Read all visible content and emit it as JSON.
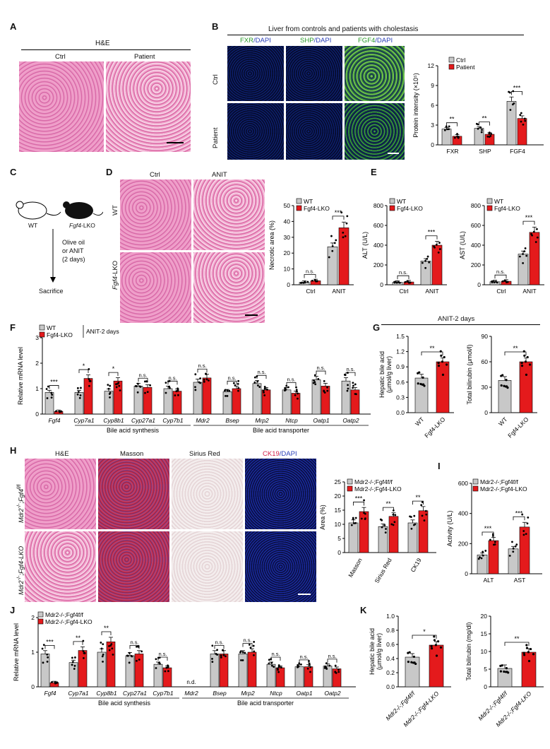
{
  "panels": {
    "A": {
      "letter": "A",
      "title": "H&E",
      "ctrl": "Ctrl",
      "patient": "Patient"
    },
    "B": {
      "letter": "B",
      "title": "Liver from controls and patients with cholestasis",
      "col1a": "FXR",
      "col1b": "/DAPI",
      "col2a": "SHP",
      "col2b": "/DAPI",
      "col3a": "FGF4",
      "col3b": "/DAPI",
      "row1": "Ctrl",
      "row2": "Patient"
    },
    "C": {
      "letter": "C",
      "wt": "WT",
      "lko": "Fgf4",
      "lko_suffix": "-LKO",
      "treat1": "Olive oil",
      "treat2": "or ANIT",
      "treat3": "(2 days)",
      "end": "Sacrifice"
    },
    "D": {
      "letter": "D",
      "ctrl": "Ctrl",
      "anit": "ANIT",
      "row1": "WT",
      "row2": "Fgf4",
      "row2_suffix": "-LKO"
    },
    "E": {
      "letter": "E"
    },
    "F": {
      "letter": "F"
    },
    "G": {
      "letter": "G",
      "title": "ANIT-2 days"
    },
    "H": {
      "letter": "H",
      "c1": "H&E",
      "c2": "Masson",
      "c3": "Sirius Red",
      "c4a": "CK19",
      "c4b": "/DAPI",
      "row1a": "Mdr2",
      "row1b": "-/-",
      "row1c": ";Fgf4",
      "row1d": "f/f",
      "row2a": "Mdr2",
      "row2b": "-/-",
      "row2c": ";Fgf4-LKO"
    },
    "I": {
      "letter": "I"
    },
    "J": {
      "letter": "J"
    },
    "K": {
      "letter": "K"
    }
  },
  "colors": {
    "ctrl": "#c8c8c8",
    "treat": "#e41a1c",
    "grid": "#000000"
  },
  "chart_data": [
    {
      "id": "B",
      "type": "bar",
      "ylabel": "Protein intensity (×10⁵)",
      "ylim": [
        0,
        12
      ],
      "yticks": [
        0,
        3,
        6,
        9,
        12
      ],
      "categories": [
        "FXR",
        "SHP",
        "FGF4"
      ],
      "series": [
        {
          "name": "Ctrl",
          "values": [
            2.4,
            2.5,
            6.6
          ]
        },
        {
          "name": "Patient",
          "values": [
            1.3,
            1.6,
            4.0
          ]
        }
      ],
      "sig": [
        "**",
        "**",
        "***"
      ],
      "legend": [
        "Ctrl",
        "Patient"
      ]
    },
    {
      "id": "D",
      "type": "bar",
      "ylabel": "Necrotic area (%)",
      "ylim": [
        0,
        50
      ],
      "yticks": [
        0,
        10,
        20,
        30,
        40,
        50
      ],
      "categories": [
        "Ctrl",
        "ANIT"
      ],
      "series": [
        {
          "name": "WT",
          "values": [
            1.5,
            24
          ]
        },
        {
          "name": "Fgf4-LKO",
          "values": [
            2.5,
            36
          ]
        }
      ],
      "sig": [
        "n.s.",
        "***"
      ],
      "legend": [
        "WT",
        "Fgf4-LKO"
      ]
    },
    {
      "id": "E1",
      "type": "bar",
      "ylabel": "ALT (U/L)",
      "ylim": [
        0,
        800
      ],
      "yticks": [
        0,
        200,
        400,
        600,
        800
      ],
      "categories": [
        "Ctrl",
        "ANIT"
      ],
      "series": [
        {
          "name": "WT",
          "values": [
            25,
            240
          ]
        },
        {
          "name": "Fgf4-LKO",
          "values": [
            28,
            400
          ]
        }
      ],
      "sig": [
        "n.s.",
        "***"
      ],
      "legend": [
        "WT",
        "Fgf4-LKO"
      ]
    },
    {
      "id": "E2",
      "type": "bar",
      "ylabel": "AST (U/L)",
      "ylim": [
        0,
        800
      ],
      "yticks": [
        0,
        200,
        400,
        600,
        800
      ],
      "categories": [
        "Ctrl",
        "ANIT"
      ],
      "series": [
        {
          "name": "WT",
          "values": [
            30,
            310
          ]
        },
        {
          "name": "Fgf4-LKO",
          "values": [
            35,
            530
          ]
        }
      ],
      "sig": [
        "n.s.",
        "***"
      ],
      "legend": [
        "WT",
        "Fgf4-LKO"
      ]
    },
    {
      "id": "F",
      "type": "bar",
      "ylabel": "Relative mRNA level",
      "ylim": [
        0,
        3
      ],
      "yticks": [
        0,
        1,
        2,
        3
      ],
      "categories": [
        "Fgf4",
        "Cyp7a1",
        "Cyp8b1",
        "Cyp27a1",
        "Cyp7b1",
        "Mdr2",
        "Bsep",
        "Mrp2",
        "Ntcp",
        "Oatp1",
        "Oatp2"
      ],
      "series": [
        {
          "name": "WT",
          "values": [
            0.85,
            0.85,
            0.9,
            1.1,
            1.0,
            1.25,
            0.88,
            1.2,
            0.95,
            1.35,
            1.3
          ]
        },
        {
          "name": "Fgf4-LKO",
          "values": [
            0.1,
            1.4,
            1.3,
            1.05,
            0.9,
            1.42,
            1.0,
            0.95,
            0.82,
            1.1,
            0.95
          ]
        }
      ],
      "sig": [
        "***",
        "*",
        "*",
        "n.s.",
        "n.s.",
        "n.s.",
        "n.s.",
        "n.s.",
        "n.s.",
        "n.s.",
        "n.s."
      ],
      "groups": [
        "Bile acid synthesis",
        "Bile acid transporter"
      ],
      "legend": [
        "WT",
        "Fgf4-LKO"
      ],
      "legend_note": "ANIT-2 days"
    },
    {
      "id": "G1",
      "type": "bar",
      "ylabel": "Hepatic bile acid",
      "ylabel2": "(μmol/g liver)",
      "ylim": [
        0,
        1.5
      ],
      "yticks": [
        0.0,
        0.3,
        0.6,
        0.9,
        1.2,
        1.5
      ],
      "categories": [
        "WT",
        "Fgf4-LKO"
      ],
      "values": [
        0.68,
        1.0
      ],
      "sig": [
        "**"
      ]
    },
    {
      "id": "G2",
      "type": "bar",
      "ylabel": "Total bilirubin (μmol/l)",
      "ylim": [
        0,
        90
      ],
      "yticks": [
        0,
        30,
        60,
        90
      ],
      "categories": [
        "WT",
        "Fgf4-LKO"
      ],
      "values": [
        38,
        60
      ],
      "sig": [
        "**"
      ]
    },
    {
      "id": "H",
      "type": "bar",
      "ylabel": "Area (%)",
      "ylim": [
        0,
        25
      ],
      "yticks": [
        0,
        5,
        10,
        15,
        20,
        25
      ],
      "categories": [
        "Masson",
        "Sirius Red",
        "CK19"
      ],
      "series": [
        {
          "name": "Mdr2-/-;Fgf4f/f",
          "values": [
            10.5,
            9.2,
            10.5
          ]
        },
        {
          "name": "Mdr2-/-;Fgf4-LKO",
          "values": [
            14.5,
            12.8,
            14.8
          ]
        }
      ],
      "sig": [
        "***",
        "**",
        "**"
      ],
      "legend": [
        "Mdr2-/-;Fgf4f/f",
        "Mdr2-/-;Fgf4-LKO"
      ]
    },
    {
      "id": "I",
      "type": "bar",
      "ylabel": "Activity (U/L)",
      "ylim": [
        0,
        600
      ],
      "yticks": [
        0,
        200,
        400,
        600
      ],
      "categories": [
        "ALT",
        "AST"
      ],
      "series": [
        {
          "name": "Mdr2-/-;Fgf4f/f",
          "values": [
            125,
            165
          ]
        },
        {
          "name": "Mdr2-/-;Fgf4-LKO",
          "values": [
            220,
            310
          ]
        }
      ],
      "sig": [
        "***",
        "***"
      ],
      "legend": [
        "Mdr2-/-;Fgf4f/f",
        "Mdr2-/-;Fgf4-LKO"
      ]
    },
    {
      "id": "J",
      "type": "bar",
      "ylabel": "Relative mRNA level",
      "ylim": [
        0,
        2
      ],
      "yticks": [
        0,
        1,
        2
      ],
      "categories": [
        "Fgf4",
        "Cyp7a1",
        "Cyp8b1",
        "Cyp27a1",
        "Cyp7b1",
        "Mdr2",
        "Bsep",
        "Mrp2",
        "Ntcp",
        "Oatp1",
        "Oatp2"
      ],
      "series": [
        {
          "name": "Mdr2-/-;Fgf4f/f",
          "values": [
            0.95,
            0.7,
            1.0,
            0.9,
            0.65,
            null,
            0.95,
            0.95,
            0.65,
            0.58,
            0.6
          ]
        },
        {
          "name": "Mdr2-/-;Fgf4-LKO",
          "values": [
            0.12,
            1.05,
            1.3,
            0.95,
            0.55,
            null,
            0.95,
            1.0,
            0.55,
            0.58,
            0.52
          ]
        }
      ],
      "sig": [
        "***",
        "**",
        "**",
        "n.s.",
        "n.s.",
        "",
        "n.s.",
        "n.s.",
        "n.s.",
        "n.s.",
        "n.s."
      ],
      "nd": "n.d.",
      "groups": [
        "Bile acid synthesis",
        "Bile acid transporter"
      ],
      "legend": [
        "Mdr2-/-;Fgf4f/f",
        "Mdr2-/-;Fgf4-LKO"
      ]
    },
    {
      "id": "K1",
      "type": "bar",
      "ylabel": "Hepatic bile acid",
      "ylabel2": "(μmol/g liver)",
      "ylim": [
        0,
        1.0
      ],
      "yticks": [
        0.0,
        0.2,
        0.4,
        0.6,
        0.8,
        1.0
      ],
      "categories": [
        "Mdr2-/-;Fgf4f/f",
        "Mdr2-/-;Fgf4-LKO"
      ],
      "values": [
        0.42,
        0.59
      ],
      "sig": [
        "*"
      ]
    },
    {
      "id": "K2",
      "type": "bar",
      "ylabel": "Total bilirubin (mg/dl)",
      "ylim": [
        0,
        20
      ],
      "yticks": [
        0,
        5,
        10,
        15,
        20
      ],
      "categories": [
        "Mdr2-/-;Fgf4f/f",
        "Mdr2-/-;Fgf4-LKO"
      ],
      "values": [
        5.2,
        9.8
      ],
      "sig": [
        "**"
      ]
    }
  ]
}
